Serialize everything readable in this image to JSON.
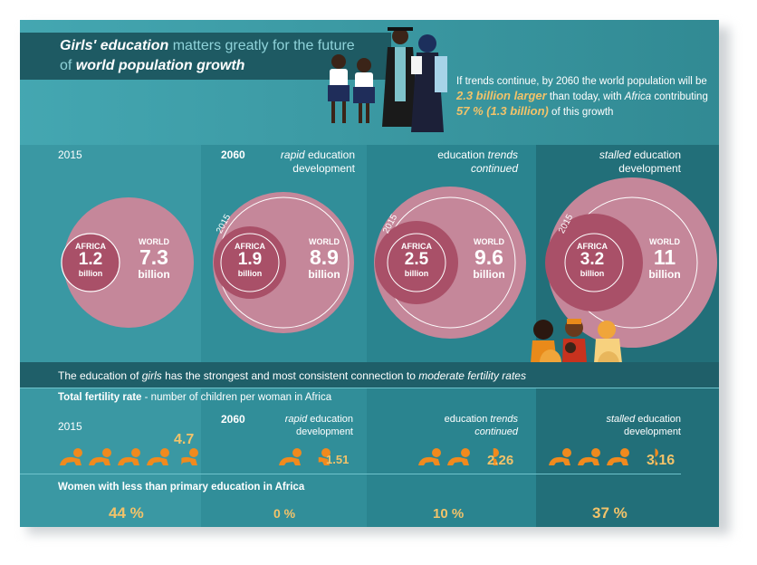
{
  "title": {
    "line1_italic": "Girls' education",
    "line1_rest": " matters greatly for the future",
    "line2_pre": "of ",
    "line2_italic": "world population growth"
  },
  "intro": {
    "part1": "If trends continue, by 2060 the world population will be ",
    "highlight1": "2.3 billion larger",
    "part2": " than today, with ",
    "africa": "Africa",
    "part3": " contributing ",
    "highlight2": "57 % (1.3 billion)",
    "part4": " of this growth"
  },
  "columns": [
    {
      "label_plain": "2015",
      "label_italic": "",
      "label_rest": "",
      "year_tag": "",
      "africa_value": "1.2",
      "world_value": "7.3",
      "tfr": "4.7",
      "tfr_babies": 4.7,
      "women_pct": "44 %"
    },
    {
      "label_plain": "",
      "label_italic": "rapid",
      "label_rest": " education development",
      "year_tag": "2060",
      "africa_value": "1.9",
      "world_value": "8.9",
      "tfr": "1.51",
      "tfr_babies": 1.51,
      "women_pct": "0 %"
    },
    {
      "label_plain": "",
      "label_italic": "trends",
      "label_rest": "continued",
      "label_pre": "education ",
      "year_tag": "",
      "africa_value": "2.5",
      "world_value": "9.6",
      "tfr": "2.26",
      "tfr_babies": 2.26,
      "women_pct": "10 %"
    },
    {
      "label_plain": "",
      "label_italic": "stalled",
      "label_rest": " education development",
      "year_tag": "",
      "africa_value": "3.2",
      "world_value": "11",
      "tfr": "3.16",
      "tfr_babies": 3.16,
      "women_pct": "37 %"
    }
  ],
  "circle_labels": {
    "africa": "AFRICA",
    "world": "WORLD",
    "unit": "billion",
    "ring_year": "2015"
  },
  "fertility_statement": {
    "pre": "The education of ",
    "girls": "girls",
    "mid": " has the strongest and most consistent connection to ",
    "moderate": "moderate fertility rates"
  },
  "tfr_heading": {
    "bold": "Total fertility rate",
    "rest": " - number of children per woman in Africa"
  },
  "tfr_year_2015": "2015",
  "tfr_year_2060": "2060",
  "women_heading": "Women with less than primary education in Africa",
  "colors": {
    "circle_outer": "#c5879a",
    "circle_inner": "#a95068",
    "accent": "#f2c36a",
    "baby": "#f08a1e"
  }
}
